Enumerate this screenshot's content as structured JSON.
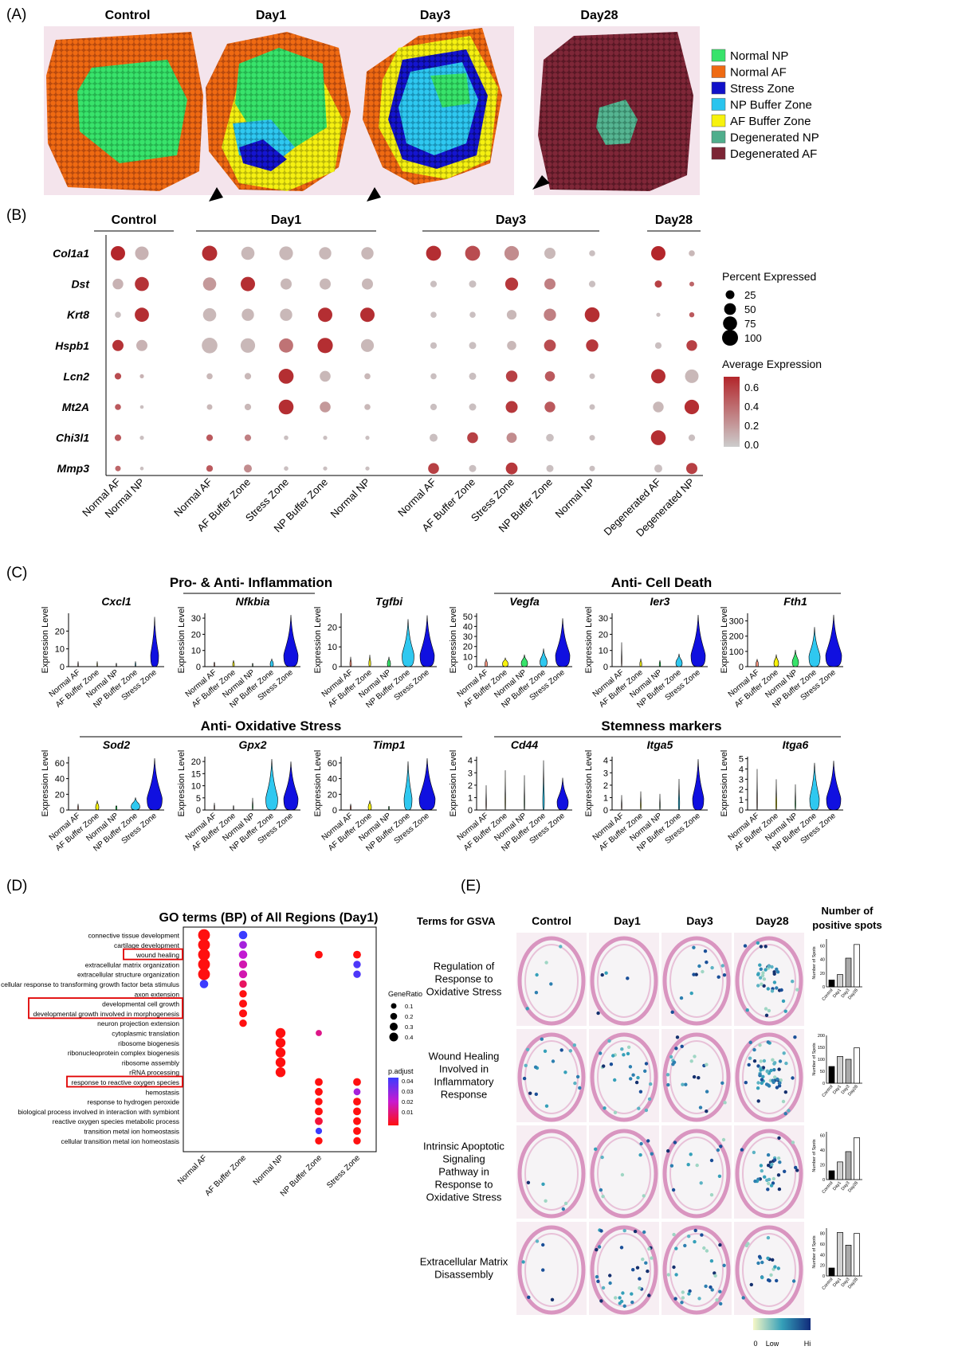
{
  "panelA": {
    "label": "(A)",
    "titles": [
      "Control",
      "Day1",
      "Day3",
      "Day28"
    ],
    "legend": [
      {
        "name": "Normal NP",
        "color": "#38e36b"
      },
      {
        "name": "Normal AF",
        "color": "#ef6a12"
      },
      {
        "name": "Stress Zone",
        "color": "#1111c9"
      },
      {
        "name": "NP Buffer Zone",
        "color": "#29c4ee"
      },
      {
        "name": "AF Buffer Zone",
        "color": "#f7f20d"
      },
      {
        "name": "Degenerated NP",
        "color": "#4fae8c"
      },
      {
        "name": "Degenerated AF",
        "color": "#7c2535"
      }
    ]
  },
  "panelB": {
    "label": "(B)",
    "genes": [
      "Col1a1",
      "Dst",
      "Krt8",
      "Hspb1",
      "Lcn2",
      "Mt2A",
      "Chi3l1",
      "Mmp3"
    ],
    "groups": [
      {
        "title": "Control",
        "cols": [
          "Normal AF",
          "Normal NP"
        ]
      },
      {
        "title": "Day1",
        "cols": [
          "Normal AF",
          "AF Buffer Zone",
          "Stress Zone",
          "NP Buffer Zone",
          "Normal NP"
        ]
      },
      {
        "title": "Day3",
        "cols": [
          "Normal AF",
          "AF Buffer Zone",
          "Stress Zone",
          "NP Buffer Zone",
          "Normal NP"
        ]
      },
      {
        "title": "Day28",
        "cols": [
          "Degenerated AF",
          "Degenerated NP"
        ]
      }
    ],
    "dots": [
      [
        [
          80,
          0.65
        ],
        [
          70,
          0.1
        ]
      ],
      [
        [
          40,
          0.1
        ],
        [
          75,
          0.6
        ]
      ],
      [
        [
          10,
          0.05
        ],
        [
          78,
          0.62
        ]
      ],
      [
        [
          45,
          0.6
        ],
        [
          45,
          0.1
        ]
      ],
      [
        [
          12,
          0.5
        ],
        [
          3,
          0.1
        ]
      ],
      [
        [
          10,
          0.45
        ],
        [
          2,
          0.05
        ]
      ],
      [
        [
          12,
          0.45
        ],
        [
          3,
          0.05
        ]
      ],
      [
        [
          8,
          0.4
        ],
        [
          2,
          0.05
        ]
      ],
      [
        [
          90,
          0.62
        ],
        [
          65,
          0.08
        ],
        [
          72,
          0.08
        ],
        [
          55,
          0.08
        ],
        [
          55,
          0.08
        ]
      ],
      [
        [
          65,
          0.2
        ],
        [
          80,
          0.62
        ],
        [
          45,
          0.08
        ],
        [
          45,
          0.08
        ],
        [
          45,
          0.08
        ]
      ],
      [
        [
          65,
          0.08
        ],
        [
          55,
          0.08
        ],
        [
          55,
          0.08
        ],
        [
          80,
          0.62
        ],
        [
          80,
          0.62
        ]
      ],
      [
        [
          95,
          0.08
        ],
        [
          82,
          0.08
        ],
        [
          78,
          0.35
        ],
        [
          92,
          0.62
        ],
        [
          62,
          0.08
        ]
      ],
      [
        [
          10,
          0.08
        ],
        [
          12,
          0.08
        ],
        [
          88,
          0.62
        ],
        [
          42,
          0.08
        ],
        [
          10,
          0.08
        ]
      ],
      [
        [
          8,
          0.08
        ],
        [
          12,
          0.08
        ],
        [
          85,
          0.62
        ],
        [
          42,
          0.2
        ],
        [
          10,
          0.08
        ]
      ],
      [
        [
          12,
          0.45
        ],
        [
          12,
          0.3
        ],
        [
          4,
          0.05
        ],
        [
          3,
          0.05
        ],
        [
          3,
          0.05
        ]
      ],
      [
        [
          12,
          0.45
        ],
        [
          20,
          0.25
        ],
        [
          4,
          0.05
        ],
        [
          3,
          0.05
        ],
        [
          3,
          0.05
        ]
      ],
      [
        [
          88,
          0.62
        ],
        [
          88,
          0.5
        ],
        [
          82,
          0.25
        ],
        [
          45,
          0.08
        ],
        [
          10,
          0.05
        ]
      ],
      [
        [
          12,
          0.05
        ],
        [
          15,
          0.05
        ],
        [
          62,
          0.58
        ],
        [
          45,
          0.3
        ],
        [
          12,
          0.05
        ]
      ],
      [
        [
          10,
          0.05
        ],
        [
          10,
          0.05
        ],
        [
          32,
          0.08
        ],
        [
          55,
          0.3
        ],
        [
          85,
          0.62
        ]
      ],
      [
        [
          12,
          0.05
        ],
        [
          15,
          0.05
        ],
        [
          28,
          0.08
        ],
        [
          50,
          0.5
        ],
        [
          55,
          0.58
        ]
      ],
      [
        [
          10,
          0.05
        ],
        [
          15,
          0.05
        ],
        [
          48,
          0.55
        ],
        [
          35,
          0.45
        ],
        [
          8,
          0.05
        ]
      ],
      [
        [
          12,
          0.05
        ],
        [
          15,
          0.05
        ],
        [
          52,
          0.58
        ],
        [
          40,
          0.45
        ],
        [
          8,
          0.05
        ]
      ],
      [
        [
          20,
          0.05
        ],
        [
          42,
          0.55
        ],
        [
          36,
          0.25
        ],
        [
          18,
          0.05
        ],
        [
          8,
          0.05
        ]
      ],
      [
        [
          42,
          0.55
        ],
        [
          15,
          0.05
        ],
        [
          50,
          0.58
        ],
        [
          15,
          0.05
        ],
        [
          8,
          0.05
        ]
      ],
      [
        [
          80,
          0.65
        ],
        [
          10,
          0.08
        ]
      ],
      [
        [
          15,
          0.55
        ],
        [
          5,
          0.4
        ]
      ],
      [
        [
          3,
          0.05
        ],
        [
          6,
          0.45
        ]
      ],
      [
        [
          12,
          0.05
        ],
        [
          40,
          0.55
        ]
      ],
      [
        [
          80,
          0.62
        ],
        [
          70,
          0.08
        ]
      ],
      [
        [
          40,
          0.08
        ],
        [
          82,
          0.62
        ]
      ],
      [
        [
          85,
          0.62
        ],
        [
          12,
          0.05
        ]
      ],
      [
        [
          20,
          0.05
        ],
        [
          45,
          0.55
        ]
      ]
    ],
    "size_title": "Percent Expressed",
    "size_values": [
      "25",
      "50",
      "75",
      "100"
    ],
    "color_title": "Average Expression",
    "color_ticks": [
      "0.6",
      "0.4",
      "0.2",
      "0.0"
    ]
  },
  "panelC": {
    "label": "(C)",
    "section_titles": [
      "Pro- & Anti- Inflammation",
      "Anti- Cell Death",
      "Anti- Oxidative Stress",
      "Stemness markers"
    ],
    "ylabel": "Expression Level",
    "xcats": [
      "Normal AF",
      "AF Buffer Zone",
      "Normal NP",
      "NP Buffer Zone",
      "Stress Zone"
    ],
    "violins": [
      {
        "gene": "Cxcl1",
        "ticks": [
          "0",
          "10",
          "20"
        ],
        "ymax": 30,
        "tops": [
          3,
          3,
          2,
          3,
          28
        ],
        "widths": [
          0.04,
          0.04,
          0.03,
          0.05,
          0.5
        ]
      },
      {
        "gene": "Nfkbia",
        "ticks": [
          "0",
          "10",
          "20",
          "30"
        ],
        "ymax": 33,
        "tops": [
          3,
          4,
          2,
          5,
          32
        ],
        "widths": [
          0.05,
          0.1,
          0.04,
          0.2,
          0.9
        ]
      },
      {
        "gene": "Tgfbi",
        "ticks": [
          "0",
          "10",
          "20"
        ],
        "ymax": 27,
        "tops": [
          5,
          6,
          5,
          24,
          26
        ],
        "widths": [
          0.1,
          0.12,
          0.2,
          0.75,
          0.9
        ]
      },
      {
        "gene": "Vegfa",
        "ticks": [
          "0",
          "10",
          "20",
          "30",
          "40",
          "50"
        ],
        "ymax": 53,
        "tops": [
          8,
          9,
          12,
          18,
          48
        ],
        "widths": [
          0.15,
          0.35,
          0.4,
          0.45,
          0.9
        ]
      },
      {
        "gene": "Ier3",
        "ticks": [
          "0",
          "10",
          "20",
          "30"
        ],
        "ymax": 33,
        "tops": [
          15,
          5,
          4,
          8,
          32
        ],
        "widths": [
          0.04,
          0.12,
          0.08,
          0.4,
          0.9
        ]
      },
      {
        "gene": "Fth1",
        "ticks": [
          "0",
          "100",
          "200",
          "300"
        ],
        "ymax": 350,
        "tops": [
          50,
          80,
          110,
          260,
          340
        ],
        "widths": [
          0.15,
          0.3,
          0.4,
          0.7,
          1.0
        ]
      },
      {
        "gene": "Sod2",
        "ticks": [
          "0",
          "20",
          "40",
          "60"
        ],
        "ymax": 68,
        "tops": [
          8,
          12,
          6,
          16,
          66
        ],
        "widths": [
          0.05,
          0.2,
          0.08,
          0.55,
          0.95
        ]
      },
      {
        "gene": "Gpx2",
        "ticks": [
          "0",
          "5",
          "10",
          "15",
          "20"
        ],
        "ymax": 22,
        "tops": [
          3,
          2,
          5,
          21,
          20
        ],
        "widths": [
          0.04,
          0.03,
          0.05,
          0.75,
          0.9
        ]
      },
      {
        "gene": "Timp1",
        "ticks": [
          "0",
          "20",
          "40",
          "60"
        ],
        "ymax": 68,
        "tops": [
          8,
          12,
          5,
          62,
          66
        ],
        "widths": [
          0.06,
          0.2,
          0.05,
          0.5,
          1.0
        ]
      },
      {
        "gene": "Cd44",
        "ticks": [
          "0",
          "1",
          "2",
          "3",
          "4"
        ],
        "ymax": 4.3,
        "tops": [
          2,
          3.2,
          2.8,
          4,
          2.6
        ],
        "widths": [
          0.04,
          0.04,
          0.04,
          0.1,
          0.7
        ]
      },
      {
        "gene": "Itga5",
        "ticks": [
          "0",
          "1",
          "2",
          "3",
          "4"
        ],
        "ymax": 4.3,
        "tops": [
          1.2,
          1.5,
          1.3,
          2.5,
          4.1
        ],
        "widths": [
          0.04,
          0.05,
          0.04,
          0.08,
          0.7
        ]
      },
      {
        "gene": "Itga6",
        "ticks": [
          "0",
          "1",
          "2",
          "3",
          "4",
          "5"
        ],
        "ymax": 5.2,
        "tops": [
          4,
          3,
          2.5,
          4.6,
          4.8
        ],
        "widths": [
          0.04,
          0.06,
          0.05,
          0.6,
          0.9
        ]
      }
    ]
  },
  "panelD": {
    "label": "(D)",
    "title": "GO terms (BP) of All Regions (Day1)",
    "terms": [
      "connective tissue development",
      "cartilage development",
      "wound healing",
      "extracellular matrix organization",
      "extracellular structure organization",
      "cellular response to transforming growth factor beta stimulus",
      "axon extension",
      "developmental cell growth",
      "developmental growth involved in morphogenesis",
      "neuron projection extension",
      "cytoplasmic translation",
      "ribosome biogenesis",
      "ribonucleoprotein complex biogenesis",
      "ribosome assembly",
      "rRNA processing",
      "response to reactive oxygen species",
      "hemostasis",
      "response to hydrogen peroxide",
      "biological process involved in interaction with symbiont",
      "reactive oxygen species metabolic process",
      "transition metal ion homeostasis",
      "cellular transition metal ion homeostasis"
    ],
    "boxed": [
      2,
      7,
      8,
      15
    ],
    "xcats": [
      "Normal AF",
      "AF Buffer Zone",
      "Normal NP",
      "NP Buffer Zone",
      "Stress Zone"
    ],
    "dots": [
      [
        0,
        0,
        0.42,
        0.0
      ],
      [
        0,
        1,
        0.42,
        0.0
      ],
      [
        0,
        2,
        0.42,
        0.0
      ],
      [
        0,
        3,
        0.42,
        0.0
      ],
      [
        0,
        4,
        0.42,
        0.0
      ],
      [
        0,
        5,
        0.15,
        0.048
      ],
      [
        1,
        0,
        0.15,
        0.048
      ],
      [
        1,
        1,
        0.12,
        0.03
      ],
      [
        1,
        2,
        0.15,
        0.025
      ],
      [
        1,
        3,
        0.14,
        0.02
      ],
      [
        1,
        4,
        0.14,
        0.02
      ],
      [
        1,
        5,
        0.1,
        0.01
      ],
      [
        1,
        6,
        0.1,
        0.0
      ],
      [
        1,
        7,
        0.13,
        0.0
      ],
      [
        1,
        8,
        0.13,
        0.0
      ],
      [
        1,
        9,
        0.1,
        0.0
      ],
      [
        2,
        10,
        0.25,
        0.0
      ],
      [
        2,
        11,
        0.25,
        0.0
      ],
      [
        2,
        12,
        0.25,
        0.0
      ],
      [
        2,
        13,
        0.25,
        0.0
      ],
      [
        2,
        14,
        0.25,
        0.0
      ],
      [
        3,
        2,
        0.12,
        0.0
      ],
      [
        3,
        10,
        0.05,
        0.015
      ],
      [
        3,
        15,
        0.12,
        0.0
      ],
      [
        3,
        16,
        0.12,
        0.0
      ],
      [
        3,
        17,
        0.1,
        0.0
      ],
      [
        3,
        18,
        0.12,
        0.0
      ],
      [
        3,
        19,
        0.12,
        0.005
      ],
      [
        3,
        20,
        0.06,
        0.048
      ],
      [
        3,
        21,
        0.1,
        0.0
      ],
      [
        4,
        2,
        0.12,
        0.0
      ],
      [
        4,
        3,
        0.1,
        0.045
      ],
      [
        4,
        4,
        0.1,
        0.045
      ],
      [
        4,
        15,
        0.12,
        0.0
      ],
      [
        4,
        16,
        0.08,
        0.03
      ],
      [
        4,
        17,
        0.12,
        0.0
      ],
      [
        4,
        18,
        0.12,
        0.0
      ],
      [
        4,
        19,
        0.12,
        0.0
      ],
      [
        4,
        20,
        0.12,
        0.0
      ],
      [
        4,
        21,
        0.1,
        0.0
      ]
    ],
    "size_title": "GeneRatio",
    "size_values": [
      "0.1",
      "0.2",
      "0.3",
      "0.4"
    ],
    "color_title": "p.adjust",
    "color_ticks": [
      "0.04",
      "0.03",
      "0.02",
      "0.01"
    ]
  },
  "panelE": {
    "label": "(E)",
    "terms_header": "Terms for GSVA",
    "cols": [
      "Control",
      "Day1",
      "Day3",
      "Day28"
    ],
    "count_header": [
      "Number of",
      "positive spots"
    ],
    "rows": [
      {
        "term": [
          "Regulation of",
          "Response to",
          "Oxidative Stress"
        ],
        "bars": [
          10,
          18,
          42,
          62
        ],
        "yticks": [
          "0",
          "20",
          "40",
          "60"
        ],
        "ymax": 70
      },
      {
        "term": [
          "Wound Healing",
          "Involved in",
          "Inflammatory",
          "Response"
        ],
        "bars": [
          70,
          112,
          100,
          148
        ],
        "yticks": [
          "0",
          "50",
          "100",
          "150",
          "200"
        ],
        "ymax": 200
      },
      {
        "term": [
          "Intrinsic Apoptotic",
          "Signaling",
          "Pathway in",
          "Response to",
          "Oxidative Stress"
        ],
        "bars": [
          12,
          24,
          38,
          57
        ],
        "yticks": [
          "0",
          "20",
          "40",
          "60"
        ],
        "ymax": 65
      },
      {
        "term": [
          "Extracellular Matrix",
          "Disassembly"
        ],
        "bars": [
          15,
          82,
          58,
          80
        ],
        "yticks": [
          "0",
          "20",
          "40",
          "60",
          "80"
        ],
        "ymax": 90
      }
    ],
    "bar_ylabel": "Number of Spots",
    "bar_cats": [
      "Control",
      "Day1",
      "Day3",
      "Day28"
    ],
    "scale_labels": [
      "0",
      "Low",
      "Hi"
    ]
  }
}
